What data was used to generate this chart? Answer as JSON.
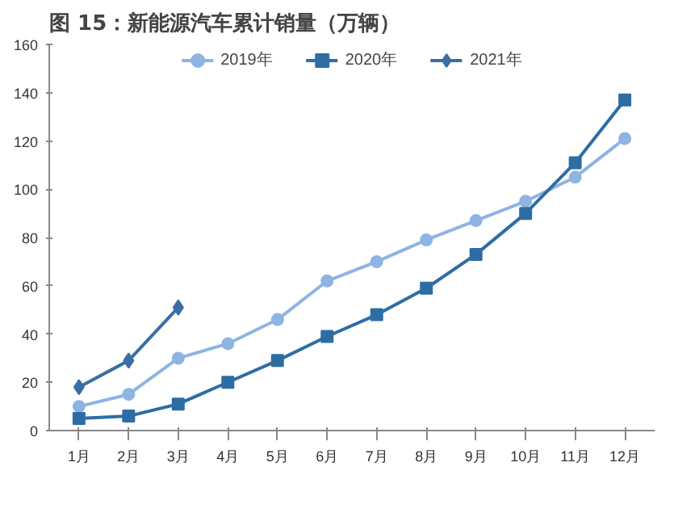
{
  "chart_data": {
    "type": "line",
    "title": "图 15：新能源汽车累计销量（万辆）",
    "categories": [
      "1月",
      "2月",
      "3月",
      "4月",
      "5月",
      "6月",
      "7月",
      "8月",
      "9月",
      "10月",
      "11月",
      "12月"
    ],
    "series": [
      {
        "name": "2019年",
        "color": "#8eb4e3",
        "marker": "circle",
        "values": [
          10,
          15,
          30,
          36,
          46,
          62,
          70,
          79,
          87,
          95,
          105,
          121
        ]
      },
      {
        "name": "2020年",
        "color": "#2e6da4",
        "marker": "square",
        "values": [
          5,
          6,
          11,
          20,
          29,
          39,
          48,
          59,
          73,
          90,
          111,
          137
        ]
      },
      {
        "name": "2021年",
        "color": "#3a6ea5",
        "marker": "diamond",
        "values": [
          18,
          29,
          51,
          null,
          null,
          null,
          null,
          null,
          null,
          null,
          null,
          null
        ]
      }
    ],
    "ylim": [
      0,
      160
    ],
    "yticks": [
      0,
      20,
      40,
      60,
      80,
      100,
      120,
      140,
      160
    ],
    "grid": false,
    "legend": "top"
  }
}
